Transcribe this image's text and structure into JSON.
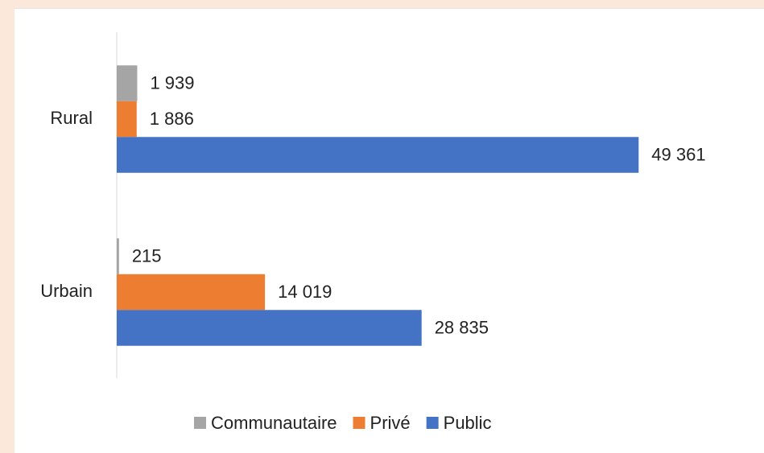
{
  "chart_data": {
    "type": "bar",
    "orientation": "horizontal",
    "categories": [
      "Rural",
      "Urbain"
    ],
    "series": [
      {
        "name": "Communautaire",
        "color": "#a5a5a5",
        "values": [
          1939,
          215
        ],
        "value_labels": [
          "1 939",
          "215"
        ]
      },
      {
        "name": "Privé",
        "color": "#ed7d31",
        "values": [
          1886,
          14019
        ],
        "value_labels": [
          "1 886",
          "14 019"
        ]
      },
      {
        "name": "Public",
        "color": "#4472c4",
        "values": [
          49361,
          28835
        ],
        "value_labels": [
          "49 361",
          "28 835"
        ]
      }
    ],
    "xlim": [
      0,
      60000
    ],
    "legend": "bottom"
  }
}
